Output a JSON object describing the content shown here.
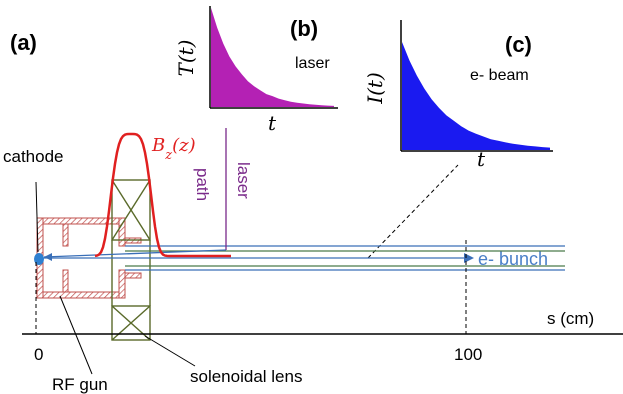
{
  "panels": {
    "a": "(a)",
    "b": "(b)",
    "c": "(c)"
  },
  "inset_laser": {
    "ylabel": "T(t)",
    "xlabel": "t",
    "caption": "laser",
    "fill_color": "#b421b4",
    "decay": [
      1.0,
      0.8,
      0.64,
      0.51,
      0.41,
      0.33,
      0.26,
      0.21,
      0.17,
      0.13,
      0.11,
      0.085,
      0.068,
      0.054,
      0.043,
      0.035,
      0.028,
      0.022,
      0.018,
      0.014,
      0.011
    ]
  },
  "inset_beam": {
    "ylabel": "I(t)",
    "xlabel": "t",
    "caption": "e- beam",
    "fill_color": "#1a1af0",
    "decay": [
      1.0,
      0.83,
      0.69,
      0.57,
      0.47,
      0.39,
      0.32,
      0.27,
      0.22,
      0.18,
      0.15,
      0.125,
      0.1,
      0.085,
      0.07,
      0.058,
      0.048,
      0.04,
      0.033,
      0.027,
      0.022
    ]
  },
  "labels": {
    "cathode": "cathode",
    "field": "B_z(z)",
    "laser_path_1": "laser",
    "laser_path_2": "path",
    "bunch": "e- bunch",
    "axis": "s (cm)",
    "tick_0": "0",
    "tick_100": "100",
    "gun": "RF gun",
    "solenoid": "solenoidal lens"
  },
  "colors": {
    "field_curve": "#e02020",
    "laser_text": "#7a2a8a",
    "bunch_text": "#4a7fc8",
    "beam_line": "#3a6fb8",
    "gun_wall": "#c0504d",
    "solenoid": "#5a6a2a",
    "cathode_dot": "#2f80d0"
  }
}
